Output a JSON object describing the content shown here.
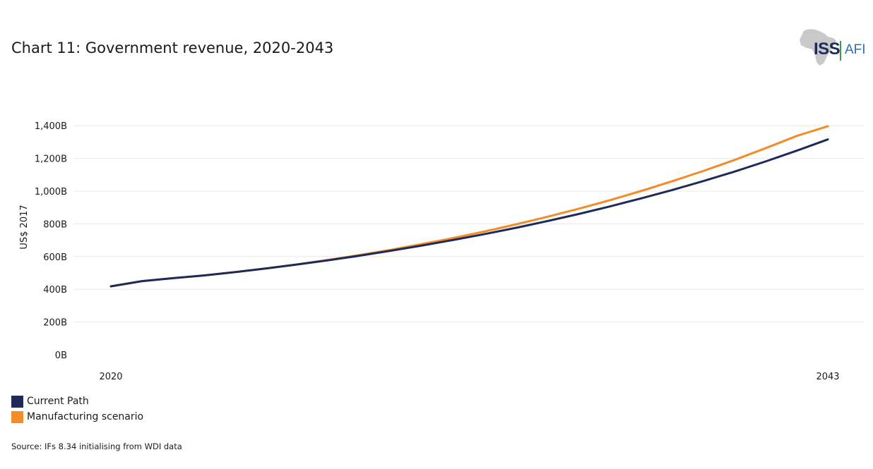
{
  "page": {
    "title": "Chart 11: Government revenue, 2020-2043",
    "source": "Source: IFs 8.34 initialising from WDI data"
  },
  "logo": {
    "left_text": "ISS",
    "right_text": "AFI",
    "icon": "africa-map-icon"
  },
  "colors": {
    "current_path": "#1c2a5c",
    "manufacturing": "#f28c28",
    "grid": "#e8e8e8"
  },
  "chart_data": {
    "type": "line",
    "title": "Chart 11: Government revenue, 2020-2043",
    "xlabel": "",
    "ylabel": "US$ 2017",
    "x": [
      2020,
      2021,
      2022,
      2023,
      2024,
      2025,
      2026,
      2027,
      2028,
      2029,
      2030,
      2031,
      2032,
      2033,
      2034,
      2035,
      2036,
      2037,
      2038,
      2039,
      2040,
      2041,
      2042,
      2043
    ],
    "x_tick_labels": [
      "2020",
      "2043"
    ],
    "ylim": [
      0,
      1500
    ],
    "y_ticks": [
      0,
      200,
      400,
      600,
      800,
      1000,
      1200,
      1400
    ],
    "y_tick_labels": [
      "0B",
      "200B",
      "400B",
      "600B",
      "800B",
      "1,000B",
      "1,200B",
      "1,400B"
    ],
    "grid": true,
    "legend_position": "bottom-left",
    "series": [
      {
        "name": "Current Path",
        "color": "#1c2a5c",
        "values": [
          418,
          450,
          468,
          485,
          505,
          528,
          552,
          578,
          606,
          636,
          668,
          702,
          738,
          776,
          817,
          860,
          906,
          955,
          1006,
          1061,
          1119,
          1181,
          1247,
          1316
        ]
      },
      {
        "name": "Manufacturing scenario",
        "color": "#f28c28",
        "values": [
          418,
          450,
          468,
          485,
          505,
          528,
          553,
          580,
          610,
          642,
          677,
          714,
          754,
          797,
          843,
          892,
          944,
          1000,
          1060,
          1123,
          1190,
          1262,
          1337,
          1397
        ]
      }
    ]
  }
}
